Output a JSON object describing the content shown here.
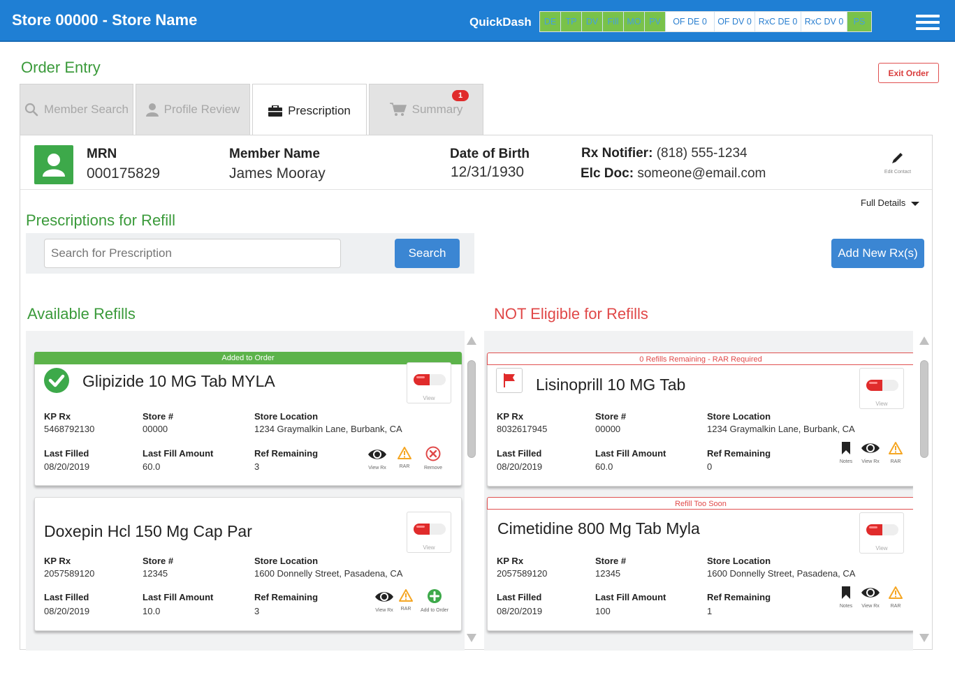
{
  "header": {
    "store_title": "Store 00000 - Store Name",
    "quickdash_label": "QuickDash",
    "quickdash_items": [
      {
        "label": "DE",
        "state": "green"
      },
      {
        "label": "TP",
        "state": "green"
      },
      {
        "label": "DV",
        "state": "green"
      },
      {
        "label": "Fill",
        "state": "green"
      },
      {
        "label": "MO",
        "state": "green"
      },
      {
        "label": "PV",
        "state": "green"
      },
      {
        "label": "OF DE 0",
        "state": "white"
      },
      {
        "label": "OF DV 0",
        "state": "white"
      },
      {
        "label": "RxC DE 0",
        "state": "white"
      },
      {
        "label": "RxC DV 0",
        "state": "white"
      },
      {
        "label": "PS",
        "state": "green"
      }
    ],
    "menu_icon": "hamburger-menu-icon"
  },
  "page": {
    "title": "Order Entry",
    "exit_label": "Exit Order"
  },
  "tabs": [
    {
      "label": "Member Search",
      "icon": "search-icon",
      "active": false
    },
    {
      "label": "Profile Review",
      "icon": "person-icon",
      "active": false
    },
    {
      "label": "Prescription",
      "icon": "briefcase-icon",
      "active": true
    },
    {
      "label": "Summary",
      "icon": "cart-icon",
      "active": false,
      "badge": "1"
    }
  ],
  "member": {
    "mrn_label": "MRN",
    "mrn": "000175829",
    "name_label": "Member Name",
    "name": "James Mooray",
    "dob_label": "Date of Birth",
    "dob": "12/31/1930",
    "notifier_label": "Rx Notifier:",
    "notifier": "(818) 555-1234",
    "elc_label": "Elc Doc:",
    "elc": "someone@email.com",
    "edit_contact_label": "Edit Contact"
  },
  "full_details_label": "Full Details",
  "refill_section": {
    "title": "Prescriptions for Refill",
    "search_placeholder": "Search for Prescription",
    "search_label": "Search",
    "add_label": "Add New Rx(s)"
  },
  "field_labels": {
    "kp_rx": "KP Rx",
    "store": "Store #",
    "location": "Store Location",
    "last_filled": "Last Filled",
    "last_fill_amount": "Last Fill Amount",
    "ref_remaining": "Ref Remaining",
    "view": "View"
  },
  "available": {
    "title": "Available Refills",
    "cards": [
      {
        "banner": "Added to Order",
        "drug": "Glipizide 10 MG Tab MYLA",
        "kp_rx": "5468792130",
        "store": "00000",
        "location": "1234 Graymalkin Lane, Burbank, CA",
        "last_filled": "08/20/2019",
        "last_fill_amount": "60.0",
        "ref_remaining": "3",
        "actions": [
          "View Rx",
          "RAR",
          "Remove"
        ]
      },
      {
        "banner": "",
        "drug": "Doxepin Hcl 150 Mg Cap Par",
        "kp_rx": "2057589120",
        "store": "12345",
        "location": "1600 Donnelly Street, Pasadena, CA",
        "last_filled": "08/20/2019",
        "last_fill_amount": "10.0",
        "ref_remaining": "3",
        "actions": [
          "View Rx",
          "RAR",
          "Add to Order"
        ]
      }
    ]
  },
  "not_eligible": {
    "title": "NOT Eligible for Refills",
    "cards": [
      {
        "banner": "0 Refills Remaining - RAR Required",
        "drug": "Lisinoprill 10 MG Tab",
        "kp_rx": "8032617945",
        "store": "00000",
        "location": "1234 Graymalkin Lane, Burbank, CA",
        "last_filled": "08/20/2019",
        "last_fill_amount": "60.0",
        "ref_remaining": "0",
        "actions": [
          "Notes",
          "View Rx",
          "RAR"
        ]
      },
      {
        "banner": "Refill Too Soon",
        "drug": "Cimetidine 800 Mg Tab Myla",
        "kp_rx": "2057589120",
        "store": "12345",
        "location": "1600 Donnelly Street, Pasadena, CA",
        "last_filled": "08/20/2019",
        "last_fill_amount": "100",
        "ref_remaining": "1",
        "actions": [
          "Notes",
          "View Rx",
          "RAR"
        ]
      }
    ]
  },
  "colors": {
    "brand_blue": "#1f7fd4",
    "button_blue": "#3b86d3",
    "title_green": "#3a9a3a",
    "alert_red": "#e04848",
    "status_green": "#5cb34a",
    "warning_orange": "#f5a623"
  }
}
